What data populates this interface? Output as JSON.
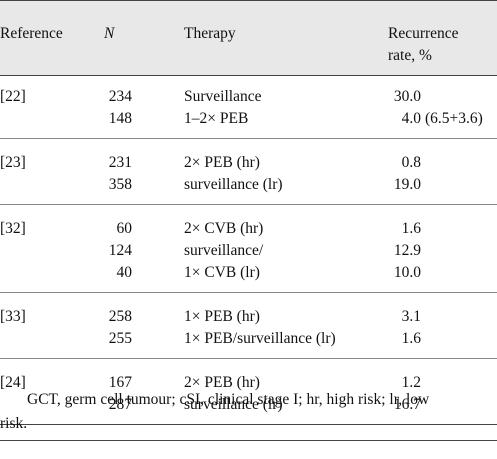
{
  "headers": {
    "reference": "Reference",
    "n": "N",
    "therapy": "Therapy",
    "rate_line1": "Recurrence",
    "rate_line2": "rate, %"
  },
  "groups": [
    {
      "ref": "[22]",
      "rows": [
        {
          "n": "234",
          "therapy": "Surveillance",
          "rate": "30.0",
          "extra": ""
        },
        {
          "n": "148",
          "therapy": "1–2× PEB",
          "rate": "4.0",
          "extra": "(6.5+3.6)"
        }
      ]
    },
    {
      "ref": "[23]",
      "rows": [
        {
          "n": "231",
          "therapy": "2× PEB (hr)",
          "rate": "0.8",
          "extra": ""
        },
        {
          "n": "358",
          "therapy": "surveillance (lr)",
          "rate": "19.0",
          "extra": ""
        }
      ]
    },
    {
      "ref": "[32]",
      "rows": [
        {
          "n": "60",
          "therapy": "2× CVB (hr)",
          "rate": "1.6",
          "extra": ""
        },
        {
          "n": "124",
          "therapy": "surveillance/",
          "rate": "12.9",
          "extra": ""
        },
        {
          "n": "40",
          "therapy": "1× CVB (lr)",
          "rate": "10.0",
          "extra": ""
        }
      ]
    },
    {
      "ref": "[33]",
      "rows": [
        {
          "n": "258",
          "therapy": "1× PEB (hr)",
          "rate": "3.1",
          "extra": ""
        },
        {
          "n": "255",
          "therapy": "1× PEB/surveillance (lr)",
          "rate": "1.6",
          "extra": ""
        }
      ]
    },
    {
      "ref": "[24]",
      "rows": [
        {
          "n": "167",
          "therapy": "2× PEB (hr)",
          "rate": "1.2",
          "extra": ""
        },
        {
          "n": "287",
          "therapy": "surveillance (lr)",
          "rate": "16.7",
          "extra": ""
        }
      ]
    }
  ],
  "footnote": {
    "line1": "GCT, germ cell tumour; cSI, clinical stage I; hr, high risk; lr, low",
    "line2": "risk."
  }
}
